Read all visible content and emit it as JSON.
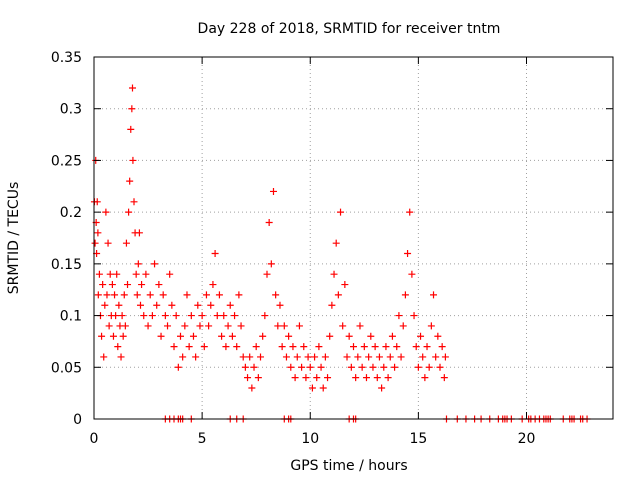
{
  "chart_data": {
    "type": "scatter",
    "title": "Day 228 of 2018, SRMTID for receiver tntm",
    "xlabel": "GPS time / hours",
    "ylabel": "SRMTID / TECUs",
    "xlim": [
      0,
      24
    ],
    "ylim": [
      0,
      0.35
    ],
    "xticks": [
      0,
      5,
      10,
      15,
      20
    ],
    "xtick_labels": [
      "0",
      "5",
      "10",
      "15",
      "20"
    ],
    "yticks": [
      0,
      0.05,
      0.1,
      0.15,
      0.2,
      0.25,
      0.3,
      0.35
    ],
    "ytick_labels": [
      "0",
      "0.05",
      "0.1",
      "0.15",
      "0.2",
      "0.25",
      "0.3",
      "0.35"
    ],
    "grid": true,
    "marker": "+",
    "color": "#ff0000",
    "series": [
      {
        "name": "SRMTID",
        "points": [
          [
            0.02,
            0.21
          ],
          [
            0.05,
            0.17
          ],
          [
            0.08,
            0.25
          ],
          [
            0.1,
            0.19
          ],
          [
            0.12,
            0.16
          ],
          [
            0.15,
            0.21
          ],
          [
            0.18,
            0.18
          ],
          [
            0.2,
            0.12
          ],
          [
            0.25,
            0.14
          ],
          [
            0.3,
            0.1
          ],
          [
            0.35,
            0.08
          ],
          [
            0.4,
            0.13
          ],
          [
            0.45,
            0.06
          ],
          [
            0.5,
            0.11
          ],
          [
            0.55,
            0.2
          ],
          [
            0.6,
            0.12
          ],
          [
            0.65,
            0.17
          ],
          [
            0.7,
            0.09
          ],
          [
            0.75,
            0.14
          ],
          [
            0.8,
            0.1
          ],
          [
            0.85,
            0.13
          ],
          [
            0.9,
            0.08
          ],
          [
            0.95,
            0.12
          ],
          [
            1.0,
            0.1
          ],
          [
            1.05,
            0.14
          ],
          [
            1.1,
            0.07
          ],
          [
            1.15,
            0.11
          ],
          [
            1.2,
            0.09
          ],
          [
            1.25,
            0.06
          ],
          [
            1.3,
            0.1
          ],
          [
            1.35,
            0.08
          ],
          [
            1.4,
            0.12
          ],
          [
            1.45,
            0.09
          ],
          [
            1.5,
            0.17
          ],
          [
            1.55,
            0.13
          ],
          [
            1.6,
            0.2
          ],
          [
            1.65,
            0.23
          ],
          [
            1.7,
            0.28
          ],
          [
            1.75,
            0.3
          ],
          [
            1.78,
            0.32
          ],
          [
            1.8,
            0.25
          ],
          [
            1.85,
            0.21
          ],
          [
            1.9,
            0.18
          ],
          [
            1.95,
            0.14
          ],
          [
            2.0,
            0.12
          ],
          [
            2.05,
            0.15
          ],
          [
            2.1,
            0.18
          ],
          [
            2.15,
            0.11
          ],
          [
            2.2,
            0.13
          ],
          [
            2.3,
            0.1
          ],
          [
            2.4,
            0.14
          ],
          [
            2.5,
            0.09
          ],
          [
            2.6,
            0.12
          ],
          [
            2.7,
            0.1
          ],
          [
            2.8,
            0.15
          ],
          [
            2.9,
            0.11
          ],
          [
            3.0,
            0.13
          ],
          [
            3.1,
            0.08
          ],
          [
            3.2,
            0.12
          ],
          [
            3.3,
            0.1
          ],
          [
            3.4,
            0.09
          ],
          [
            3.5,
            0.14
          ],
          [
            3.6,
            0.11
          ],
          [
            3.7,
            0.07
          ],
          [
            3.8,
            0.1
          ],
          [
            3.9,
            0.05
          ],
          [
            4.0,
            0.08
          ],
          [
            4.1,
            0.06
          ],
          [
            4.2,
            0.09
          ],
          [
            4.3,
            0.12
          ],
          [
            4.4,
            0.07
          ],
          [
            4.5,
            0.1
          ],
          [
            4.6,
            0.08
          ],
          [
            4.7,
            0.06
          ],
          [
            4.8,
            0.11
          ],
          [
            4.9,
            0.09
          ],
          [
            5.0,
            0.1
          ],
          [
            5.1,
            0.07
          ],
          [
            5.2,
            0.12
          ],
          [
            5.3,
            0.09
          ],
          [
            5.4,
            0.11
          ],
          [
            5.5,
            0.13
          ],
          [
            5.6,
            0.16
          ],
          [
            5.7,
            0.1
          ],
          [
            5.8,
            0.12
          ],
          [
            5.9,
            0.08
          ],
          [
            6.0,
            0.1
          ],
          [
            6.1,
            0.07
          ],
          [
            6.2,
            0.09
          ],
          [
            6.3,
            0.11
          ],
          [
            6.4,
            0.08
          ],
          [
            6.5,
            0.1
          ],
          [
            6.6,
            0.07
          ],
          [
            6.7,
            0.12
          ],
          [
            6.8,
            0.09
          ],
          [
            6.9,
            0.06
          ],
          [
            7.0,
            0.05
          ],
          [
            7.1,
            0.04
          ],
          [
            7.2,
            0.06
          ],
          [
            7.3,
            0.03
          ],
          [
            7.4,
            0.05
          ],
          [
            7.5,
            0.07
          ],
          [
            7.6,
            0.04
          ],
          [
            7.7,
            0.06
          ],
          [
            7.8,
            0.08
          ],
          [
            7.9,
            0.1
          ],
          [
            8.0,
            0.14
          ],
          [
            8.1,
            0.19
          ],
          [
            8.2,
            0.15
          ],
          [
            8.3,
            0.22
          ],
          [
            8.4,
            0.12
          ],
          [
            8.5,
            0.09
          ],
          [
            8.6,
            0.11
          ],
          [
            8.7,
            0.07
          ],
          [
            8.8,
            0.09
          ],
          [
            8.9,
            0.06
          ],
          [
            9.0,
            0.08
          ],
          [
            9.1,
            0.05
          ],
          [
            9.2,
            0.07
          ],
          [
            9.3,
            0.04
          ],
          [
            9.4,
            0.06
          ],
          [
            9.5,
            0.09
          ],
          [
            9.6,
            0.05
          ],
          [
            9.7,
            0.07
          ],
          [
            9.8,
            0.04
          ],
          [
            9.9,
            0.06
          ],
          [
            10.0,
            0.05
          ],
          [
            10.1,
            0.03
          ],
          [
            10.2,
            0.06
          ],
          [
            10.3,
            0.04
          ],
          [
            10.4,
            0.07
          ],
          [
            10.5,
            0.05
          ],
          [
            10.6,
            0.03
          ],
          [
            10.7,
            0.06
          ],
          [
            10.8,
            0.04
          ],
          [
            10.9,
            0.08
          ],
          [
            11.0,
            0.11
          ],
          [
            11.1,
            0.14
          ],
          [
            11.2,
            0.17
          ],
          [
            11.3,
            0.12
          ],
          [
            11.4,
            0.2
          ],
          [
            11.5,
            0.09
          ],
          [
            11.6,
            0.13
          ],
          [
            11.7,
            0.06
          ],
          [
            11.8,
            0.08
          ],
          [
            11.9,
            0.05
          ],
          [
            12.0,
            0.07
          ],
          [
            12.1,
            0.04
          ],
          [
            12.2,
            0.06
          ],
          [
            12.3,
            0.09
          ],
          [
            12.4,
            0.05
          ],
          [
            12.5,
            0.07
          ],
          [
            12.6,
            0.04
          ],
          [
            12.7,
            0.06
          ],
          [
            12.8,
            0.08
          ],
          [
            12.9,
            0.05
          ],
          [
            13.0,
            0.07
          ],
          [
            13.1,
            0.04
          ],
          [
            13.2,
            0.06
          ],
          [
            13.3,
            0.03
          ],
          [
            13.4,
            0.05
          ],
          [
            13.5,
            0.07
          ],
          [
            13.6,
            0.04
          ],
          [
            13.7,
            0.06
          ],
          [
            13.8,
            0.08
          ],
          [
            13.9,
            0.05
          ],
          [
            14.0,
            0.07
          ],
          [
            14.1,
            0.1
          ],
          [
            14.2,
            0.06
          ],
          [
            14.3,
            0.09
          ],
          [
            14.4,
            0.12
          ],
          [
            14.5,
            0.16
          ],
          [
            14.6,
            0.2
          ],
          [
            14.7,
            0.14
          ],
          [
            14.8,
            0.1
          ],
          [
            14.9,
            0.07
          ],
          [
            15.0,
            0.05
          ],
          [
            15.1,
            0.08
          ],
          [
            15.2,
            0.06
          ],
          [
            15.3,
            0.04
          ],
          [
            15.4,
            0.07
          ],
          [
            15.5,
            0.05
          ],
          [
            15.6,
            0.09
          ],
          [
            15.7,
            0.12
          ],
          [
            15.8,
            0.06
          ],
          [
            15.9,
            0.08
          ],
          [
            16.0,
            0.05
          ],
          [
            16.1,
            0.07
          ],
          [
            16.2,
            0.04
          ],
          [
            16.25,
            0.06
          ]
        ]
      }
    ],
    "zero_values": [
      3.3,
      3.5,
      3.7,
      3.9,
      4.0,
      4.1,
      4.5,
      6.3,
      6.6,
      6.9,
      8.8,
      9.0,
      9.1,
      11.8,
      12.0,
      12.1,
      16.3,
      16.8,
      17.2,
      17.6,
      17.9,
      18.3,
      18.7,
      18.9,
      19.0,
      19.1,
      19.3,
      19.8,
      20.1,
      20.2,
      20.4,
      20.6,
      20.8,
      20.9,
      21.0,
      21.1,
      21.7,
      22.0,
      22.1,
      22.2,
      22.5,
      22.6,
      22.8
    ]
  }
}
